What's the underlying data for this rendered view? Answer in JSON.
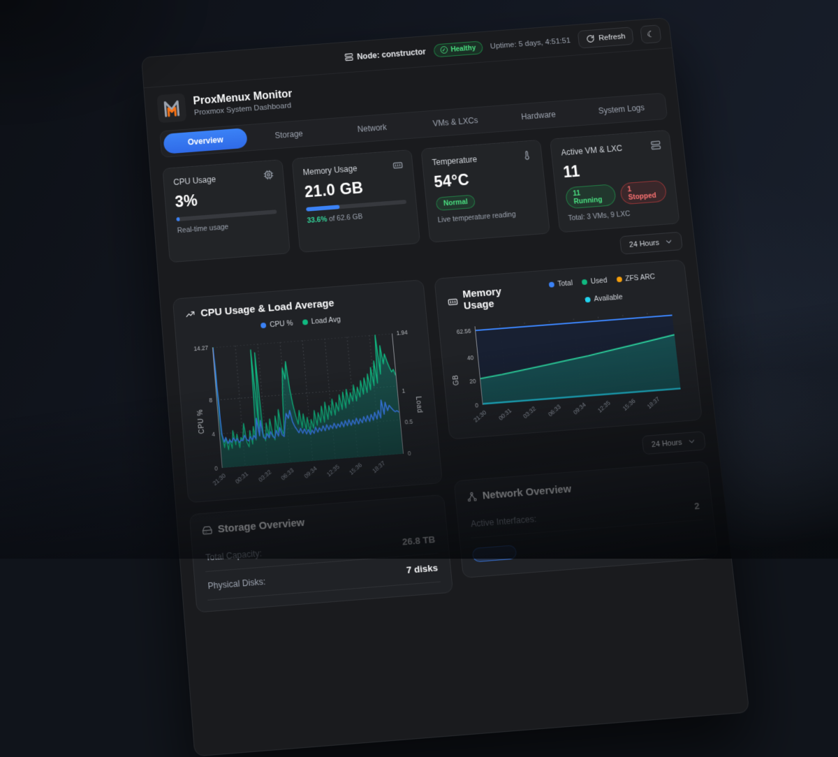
{
  "topbar": {
    "node_label": "Node: constructor",
    "health": "Healthy",
    "uptime": "Uptime: 5 days, 4:51:51",
    "refresh_label": "Refresh"
  },
  "header": {
    "title": "ProxMenux Monitor",
    "subtitle": "Proxmox System Dashboard",
    "tabs": [
      {
        "label": "Overview",
        "active": true
      },
      {
        "label": "Storage",
        "active": false
      },
      {
        "label": "Network",
        "active": false
      },
      {
        "label": "VMs & LXCs",
        "active": false
      },
      {
        "label": "Hardware",
        "active": false
      },
      {
        "label": "System Logs",
        "active": false
      }
    ]
  },
  "time_range": {
    "label": "24 Hours"
  },
  "stats": {
    "cpu": {
      "label": "CPU Usage",
      "value": "3%",
      "percent": 3,
      "subtitle": "Real-time usage"
    },
    "memory": {
      "label": "Memory Usage",
      "value": "21.0 GB",
      "percent": 33.6,
      "subtitle_highlight": "33.6%",
      "subtitle_rest": " of 62.6 GB"
    },
    "temperature": {
      "label": "Temperature",
      "value": "54°C",
      "badge": "Normal",
      "subtitle": "Live temperature reading"
    },
    "vms": {
      "label": "Active VM & LXC",
      "value": "11",
      "running_badge": "11 Running",
      "stopped_badge": "1 Stopped",
      "subtitle": "Total: 3 VMs, 9 LXC"
    }
  },
  "storage": {
    "title": "Storage Overview",
    "rows": [
      {
        "label": "Total Capacity:",
        "value": "26.8 TB"
      },
      {
        "label": "Physical Disks:",
        "value": "7 disks"
      }
    ]
  },
  "network": {
    "title": "Network Overview",
    "rows": [
      {
        "label": "Active Interfaces:",
        "value": "2"
      }
    ]
  },
  "colors": {
    "accent_blue": "#3b82f6",
    "green": "#22c55e",
    "red": "#ef4444",
    "orange_logo": "#f97316",
    "teal": "#2dd4a0",
    "cyan": "#22d3ee"
  },
  "chart_data": [
    {
      "type": "line",
      "title": "CPU Usage & Load Average",
      "legend": [
        {
          "label": "CPU %",
          "color": "#3b82f6"
        },
        {
          "label": "Load Avg",
          "color": "#10b981"
        }
      ],
      "x_labels": [
        "21:30",
        "00:31",
        "03:32",
        "06:33",
        "09:34",
        "12:35",
        "15:36",
        "18:37"
      ],
      "y_left": {
        "title": "CPU %",
        "ticks": [
          0,
          4,
          8,
          14.27
        ],
        "max": 14.27
      },
      "y_right": {
        "title": "Load",
        "ticks": [
          0,
          0.5,
          1,
          1.94
        ],
        "max": 1.94
      },
      "grid": true,
      "series": [
        {
          "name": "Load Avg",
          "axis": "right",
          "color": "#10b981",
          "fill": "rgba(17,120,105,0.50)",
          "width": 1.4,
          "values": [
            1.94,
            0.55,
            0.32,
            0.48,
            0.28,
            0.45,
            0.3,
            0.58,
            0.35,
            0.52,
            0.3,
            0.46,
            0.42,
            0.68,
            0.38,
            0.3,
            0.56,
            0.34,
            0.62,
            0.4,
            1.85,
            0.58,
            1.8,
            0.5,
            0.38,
            0.66,
            0.44,
            0.72,
            0.48,
            0.38,
            0.76,
            0.5,
            0.86,
            0.54,
            0.44,
            1.1,
            1.52,
            1.34,
            1.62,
            1.18,
            0.92,
            0.74,
            0.6,
            0.82,
            0.54,
            0.76,
            0.5,
            0.7,
            0.46,
            0.66,
            0.52,
            0.8,
            0.56,
            0.76,
            0.6,
            0.86,
            0.6,
            0.92,
            0.64,
            0.86,
            0.7,
            0.96,
            0.7,
            0.9,
            0.76,
            1.02,
            0.78,
            1.06,
            0.8,
            1.1,
            0.86,
            1.04,
            0.9,
            1.16,
            0.9,
            1.12,
            0.96,
            1.22,
            1.0,
            1.26,
            1.02,
            1.32,
            1.06,
            1.42,
            1.12,
            1.52,
            1.16,
            1.94,
            1.3,
            1.76,
            1.46,
            1.62,
            1.5,
            1.4,
            1.32,
            1.36,
            1.26
          ]
        },
        {
          "name": "CPU %",
          "axis": "left",
          "color": "#3b82f6",
          "width": 1.6,
          "values": [
            14.2,
            4.0,
            3.0,
            3.5,
            2.8,
            3.2,
            2.9,
            3.4,
            3.0,
            3.3,
            2.8,
            3.1,
            3.0,
            3.6,
            3.1,
            2.9,
            3.4,
            3.0,
            3.5,
            3.1,
            5.5,
            3.4,
            5.2,
            3.2,
            3.0,
            3.6,
            3.1,
            3.8,
            3.2,
            3.0,
            3.9,
            3.2,
            4.2,
            3.3,
            3.1,
            4.6,
            5.8,
            5.2,
            6.1,
            4.8,
            4.2,
            3.8,
            3.4,
            3.9,
            3.3,
            3.8,
            3.2,
            3.7,
            3.1,
            3.6,
            3.2,
            3.9,
            3.3,
            3.8,
            3.4,
            4.0,
            3.4,
            4.1,
            3.5,
            4.0,
            3.6,
            4.2,
            3.6,
            4.1,
            3.7,
            4.3,
            3.7,
            4.4,
            3.8,
            4.5,
            3.8,
            4.4,
            3.9,
            4.6,
            3.9,
            4.5,
            4.0,
            4.7,
            4.1,
            4.8,
            4.1,
            4.9,
            4.2,
            5.1,
            4.3,
            5.3,
            4.4,
            6.5,
            4.8,
            6.2,
            5.2,
            5.8,
            5.5,
            5.2,
            5.0,
            5.1,
            4.9
          ]
        }
      ]
    },
    {
      "type": "area",
      "title": "Memory Usage",
      "legend": [
        {
          "label": "Total",
          "color": "#3b82f6"
        },
        {
          "label": "Used",
          "color": "#10b981"
        },
        {
          "label": "ZFS ARC",
          "color": "#f59e0b"
        },
        {
          "label": "Available",
          "color": "#22d3ee"
        }
      ],
      "x_labels": [
        "21:30",
        "00:31",
        "03:32",
        "06:33",
        "09:34",
        "12:35",
        "15:36",
        "18:37"
      ],
      "y_left": {
        "title": "GB",
        "ticks": [
          0,
          20,
          40,
          62.56
        ],
        "max": 66
      },
      "grid": true,
      "series": [
        {
          "name": "Total",
          "axis": "left",
          "color": "#3b82f6",
          "fill": "rgba(24,33,51,0.95)",
          "width": 2,
          "values": [
            62.56,
            62.56,
            62.56,
            62.56,
            62.56,
            62.56,
            62.56,
            62.56,
            62.56,
            62.56
          ]
        },
        {
          "name": "Used",
          "axis": "left",
          "color": "#2dd4a0",
          "fill": "rgba(24,112,104,0.60)",
          "width": 2,
          "values": [
            22,
            24,
            26.5,
            29,
            31.5,
            34,
            37,
            40,
            43,
            46
          ]
        },
        {
          "name": "Available",
          "axis": "left",
          "color": "#22d3ee",
          "width": 2,
          "values": [
            0.8,
            0.8,
            0.8,
            0.8,
            0.8,
            0.8,
            0.8,
            0.8,
            0.8,
            0.8
          ]
        }
      ]
    }
  ]
}
